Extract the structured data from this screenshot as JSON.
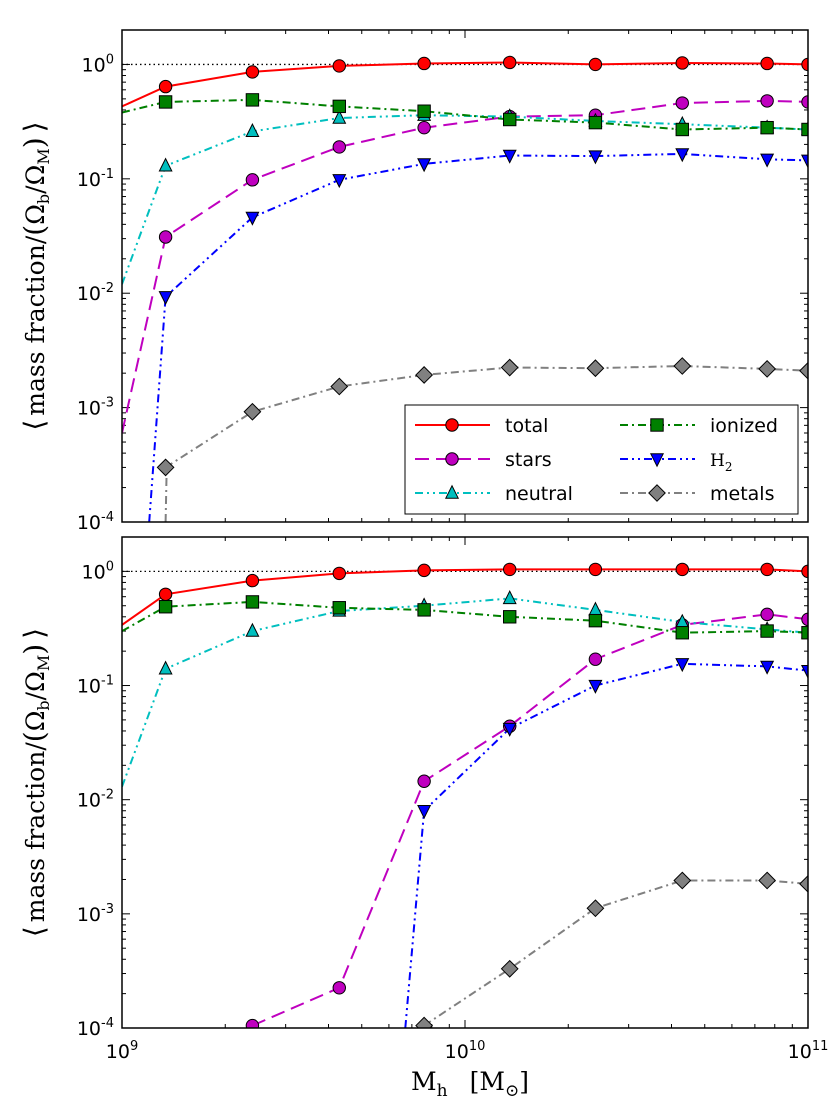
{
  "chart_data": [
    {
      "type": "line",
      "panel": "top",
      "xscale": "log",
      "yscale": "log",
      "xlim": [
        1000000000,
        100000000000
      ],
      "ylim": [
        0.0001,
        2
      ],
      "ylabel_parts": [
        "⟨",
        "mass fraction",
        "/",
        "(",
        "Ω",
        "b",
        "/",
        "Ω",
        "M",
        ")",
        "⟩"
      ],
      "reference_line": 1.0,
      "legend_position": "lower-right",
      "series": [
        {
          "name": "total",
          "label": "total",
          "color": "#ff0000",
          "dash": "",
          "marker": "circle",
          "width": 2,
          "x": [
            1000000000.0,
            1340000000.0,
            2400000000.0,
            4300000000.0,
            7600000000.0,
            13500000000.0,
            24000000000.0,
            43000000000.0,
            76000000000.0,
            100000000000.0
          ],
          "y": [
            0.43,
            0.64,
            0.86,
            0.97,
            1.02,
            1.04,
            1.0,
            1.03,
            1.02,
            1.0
          ],
          "marker_from": 1
        },
        {
          "name": "stars",
          "label": "stars",
          "color": "#bf00bf",
          "dash": "14,7",
          "marker": "circle",
          "width": 2,
          "x": [
            1000000000.0,
            1340000000.0,
            2400000000.0,
            4300000000.0,
            7600000000.0,
            13500000000.0,
            24000000000.0,
            43000000000.0,
            76000000000.0,
            100000000000.0
          ],
          "y": [
            0.0006,
            0.031,
            0.098,
            0.19,
            0.28,
            0.35,
            0.36,
            0.46,
            0.48,
            0.47
          ],
          "marker_from": 1
        },
        {
          "name": "neutral",
          "label": "neutral",
          "color": "#00bfbf",
          "dash": "8,4,2,4,2,4",
          "marker": "triangle-up",
          "width": 2,
          "x": [
            1000000000.0,
            1340000000.0,
            2400000000.0,
            4300000000.0,
            7600000000.0,
            13500000000.0,
            24000000000.0,
            43000000000.0,
            76000000000.0,
            100000000000.0
          ],
          "y": [
            0.012,
            0.13,
            0.26,
            0.34,
            0.36,
            0.35,
            0.32,
            0.3,
            0.28,
            0.27
          ],
          "marker_from": 1
        },
        {
          "name": "ionized",
          "label": "ionized",
          "color": "#008000",
          "dash": "8,4,2,4",
          "marker": "square",
          "width": 2,
          "x": [
            1000000000.0,
            1340000000.0,
            2400000000.0,
            4300000000.0,
            7600000000.0,
            13500000000.0,
            24000000000.0,
            43000000000.0,
            76000000000.0,
            100000000000.0
          ],
          "y": [
            0.38,
            0.47,
            0.49,
            0.43,
            0.39,
            0.33,
            0.31,
            0.27,
            0.28,
            0.27
          ],
          "marker_from": 1
        },
        {
          "name": "H2",
          "label": "H",
          "label_sub": "2",
          "color": "#0000ff",
          "dash": "8,4,2,4,2,4",
          "marker": "triangle-down",
          "width": 2,
          "x": [
            1200000000.0,
            1340000000.0,
            2400000000.0,
            4300000000.0,
            7600000000.0,
            13500000000.0,
            24000000000.0,
            43000000000.0,
            76000000000.0,
            100000000000.0
          ],
          "y": [
            0.0001,
            0.0093,
            0.046,
            0.098,
            0.135,
            0.16,
            0.158,
            0.165,
            0.148,
            0.145
          ],
          "marker_from": 1
        },
        {
          "name": "metals",
          "label": "metals",
          "color": "#808080",
          "dash": "8,4,2,4",
          "marker": "diamond",
          "width": 2,
          "x": [
            1340000000.0,
            2400000000.0,
            4300000000.0,
            7600000000.0,
            13500000000.0,
            24000000000.0,
            43000000000.0,
            76000000000.0,
            100000000000.0
          ],
          "y": [
            0.0003,
            0.00092,
            0.00153,
            0.00193,
            0.00224,
            0.00221,
            0.00231,
            0.00218,
            0.0021
          ],
          "marker_from": 0,
          "tail_x": [
            1340000000.0,
            1350000000.0
          ],
          "tail_y": [
            0.0001,
            0.0003
          ]
        }
      ]
    },
    {
      "type": "line",
      "panel": "bottom",
      "xscale": "log",
      "yscale": "log",
      "xlim": [
        1000000000,
        100000000000
      ],
      "ylim": [
        0.0001,
        2
      ],
      "xlabel_parts": [
        "M",
        "h",
        "[M",
        "⊙",
        "]"
      ],
      "ylabel_parts": [
        "⟨",
        "mass fraction",
        "/",
        "(",
        "Ω",
        "b",
        "/",
        "Ω",
        "M",
        ")",
        "⟩"
      ],
      "reference_line": 1.0,
      "series": [
        {
          "name": "total",
          "color": "#ff0000",
          "dash": "",
          "marker": "circle",
          "width": 2,
          "x": [
            1000000000.0,
            1340000000.0,
            2400000000.0,
            4300000000.0,
            7600000000.0,
            13500000000.0,
            24000000000.0,
            43000000000.0,
            76000000000.0,
            100000000000.0
          ],
          "y": [
            0.34,
            0.63,
            0.83,
            0.96,
            1.02,
            1.04,
            1.04,
            1.04,
            1.04,
            1.0
          ],
          "marker_from": 1
        },
        {
          "name": "stars",
          "color": "#bf00bf",
          "dash": "14,7",
          "marker": "circle",
          "width": 2,
          "x": [
            2400000000.0,
            4300000000.0,
            7600000000.0,
            13500000000.0,
            24000000000.0,
            43000000000.0,
            76000000000.0,
            100000000000.0
          ],
          "y": [
            0.000105,
            0.000225,
            0.0145,
            0.044,
            0.17,
            0.34,
            0.42,
            0.38
          ],
          "marker_from": 0
        },
        {
          "name": "neutral",
          "color": "#00bfbf",
          "dash": "8,4,2,4,2,4",
          "marker": "triangle-up",
          "width": 2,
          "x": [
            1000000000.0,
            1340000000.0,
            2400000000.0,
            4300000000.0,
            7600000000.0,
            13500000000.0,
            24000000000.0,
            43000000000.0,
            76000000000.0,
            100000000000.0
          ],
          "y": [
            0.013,
            0.14,
            0.3,
            0.45,
            0.5,
            0.58,
            0.46,
            0.36,
            0.31,
            0.29
          ],
          "marker_from": 1
        },
        {
          "name": "ionized",
          "color": "#008000",
          "dash": "8,4,2,4",
          "marker": "square",
          "width": 2,
          "x": [
            1000000000.0,
            1340000000.0,
            2400000000.0,
            4300000000.0,
            7600000000.0,
            13500000000.0,
            24000000000.0,
            43000000000.0,
            76000000000.0,
            100000000000.0
          ],
          "y": [
            0.3,
            0.49,
            0.54,
            0.48,
            0.46,
            0.4,
            0.37,
            0.29,
            0.3,
            0.29
          ],
          "marker_from": 1
        },
        {
          "name": "H2",
          "color": "#0000ff",
          "dash": "8,4,2,4,2,4",
          "marker": "triangle-down",
          "width": 2,
          "x": [
            6700000000.0,
            7600000000.0,
            13500000000.0,
            24000000000.0,
            43000000000.0,
            76000000000.0,
            100000000000.0
          ],
          "y": [
            0.0001,
            0.008,
            0.042,
            0.1,
            0.155,
            0.147,
            0.135
          ],
          "marker_from": 1
        },
        {
          "name": "metals",
          "color": "#808080",
          "dash": "8,4,2,4",
          "marker": "diamond",
          "width": 2,
          "x": [
            7600000000.0,
            13500000000.0,
            24000000000.0,
            43000000000.0,
            76000000000.0,
            100000000000.0
          ],
          "y": [
            0.000105,
            0.00033,
            0.00112,
            0.00196,
            0.00196,
            0.00183
          ],
          "marker_from": 0
        }
      ]
    }
  ],
  "axes": {
    "y_ticks": [
      {
        "value": 1,
        "base": "10",
        "exp": "0"
      },
      {
        "value": 0.1,
        "base": "10",
        "exp": "-1"
      },
      {
        "value": 0.01,
        "base": "10",
        "exp": "-2"
      },
      {
        "value": 0.001,
        "base": "10",
        "exp": "-3"
      },
      {
        "value": 0.0001,
        "base": "10",
        "exp": "-4"
      }
    ],
    "x_ticks": [
      {
        "value": 1000000000,
        "base": "10",
        "exp": "9"
      },
      {
        "value": 10000000000,
        "base": "10",
        "exp": "10"
      },
      {
        "value": 100000000000,
        "base": "10",
        "exp": "11"
      }
    ]
  }
}
